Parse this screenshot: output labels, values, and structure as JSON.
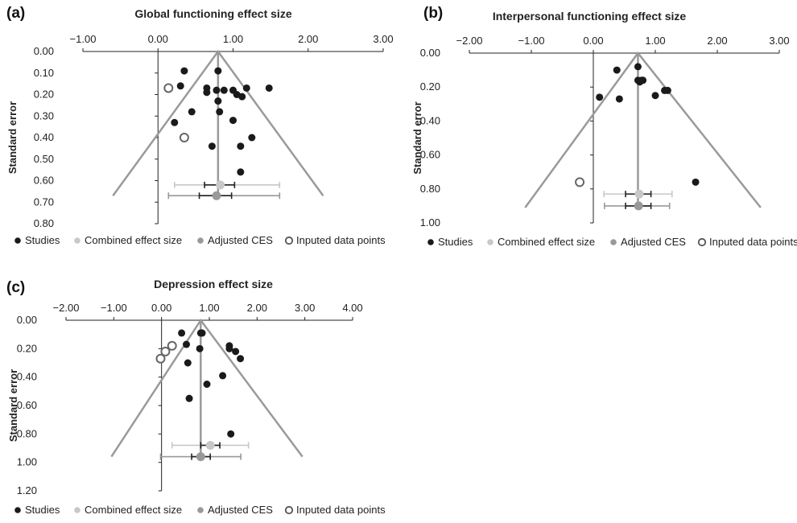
{
  "chart_data": [
    {
      "panel_label": "(a)",
      "type": "scatter",
      "title": "Global functioning effect size",
      "xlabel": "",
      "ylabel": "Standard error",
      "xlim": [
        -1.0,
        3.0
      ],
      "ylim": [
        0.0,
        0.8
      ],
      "x_ticks": [
        "−1.00",
        "0.00",
        "1.00",
        "2.00",
        "3.00"
      ],
      "y_ticks": [
        "0.00",
        "0.10",
        "0.20",
        "0.30",
        "0.40",
        "0.50",
        "0.60",
        "0.70",
        "0.80"
      ],
      "x_axis_position": "top",
      "y_axis_at_x": 0.0,
      "funnel": {
        "apex": [
          0.8,
          0.0
        ],
        "left_end": [
          -0.6,
          0.67
        ],
        "right_end": [
          2.2,
          0.67
        ]
      },
      "combined_es": {
        "x": 0.83,
        "se": 0.62,
        "ci": [
          0.22,
          1.62
        ],
        "inner_ci": [
          0.62,
          1.02
        ]
      },
      "adjusted_ces": {
        "x": 0.78,
        "se": 0.67,
        "ci": [
          0.14,
          1.62
        ],
        "inner_ci": [
          0.55,
          0.98
        ]
      },
      "studies": [
        {
          "x": 0.8,
          "y": 0.09
        },
        {
          "x": 0.35,
          "y": 0.09
        },
        {
          "x": 0.3,
          "y": 0.16
        },
        {
          "x": 0.65,
          "y": 0.17
        },
        {
          "x": 0.65,
          "y": 0.19
        },
        {
          "x": 0.78,
          "y": 0.18
        },
        {
          "x": 0.88,
          "y": 0.18
        },
        {
          "x": 1.0,
          "y": 0.18
        },
        {
          "x": 1.18,
          "y": 0.17
        },
        {
          "x": 1.48,
          "y": 0.17
        },
        {
          "x": 1.05,
          "y": 0.2
        },
        {
          "x": 1.12,
          "y": 0.21
        },
        {
          "x": 0.8,
          "y": 0.23
        },
        {
          "x": 0.82,
          "y": 0.28
        },
        {
          "x": 0.45,
          "y": 0.28
        },
        {
          "x": 0.22,
          "y": 0.33
        },
        {
          "x": 1.0,
          "y": 0.32
        },
        {
          "x": 1.25,
          "y": 0.4
        },
        {
          "x": 0.72,
          "y": 0.44
        },
        {
          "x": 1.1,
          "y": 0.44
        },
        {
          "x": 1.1,
          "y": 0.56
        }
      ],
      "imputed": [
        {
          "x": 0.14,
          "y": 0.17
        },
        {
          "x": 0.35,
          "y": 0.4
        }
      ],
      "legend": [
        "Studies",
        "Combined effect size",
        "Adjusted CES",
        "Inputed data points"
      ]
    },
    {
      "panel_label": "(b)",
      "type": "scatter",
      "title": "Interpersonal functioning effect size",
      "xlabel": "",
      "ylabel": "Standard error",
      "xlim": [
        -2.0,
        3.0
      ],
      "ylim": [
        0.0,
        1.0
      ],
      "x_ticks": [
        "−2.00",
        "−1.00",
        "0.00",
        "1.00",
        "2.00",
        "3.00"
      ],
      "y_ticks": [
        "0.00",
        "0.20",
        "0.40",
        "0.60",
        "0.80",
        "1.00"
      ],
      "x_axis_position": "top",
      "y_axis_at_x": 0.0,
      "funnel": {
        "apex": [
          0.72,
          0.0
        ],
        "left_end": [
          -1.1,
          0.91
        ],
        "right_end": [
          2.7,
          0.91
        ]
      },
      "combined_es": {
        "x": 0.74,
        "se": 0.83,
        "ci": [
          0.17,
          1.27
        ],
        "inner_ci": [
          0.52,
          0.93
        ]
      },
      "adjusted_ces": {
        "x": 0.73,
        "se": 0.9,
        "ci": [
          0.18,
          1.23
        ],
        "inner_ci": [
          0.52,
          0.93
        ]
      },
      "studies": [
        {
          "x": 0.72,
          "y": 0.08
        },
        {
          "x": 0.38,
          "y": 0.1
        },
        {
          "x": 0.72,
          "y": 0.16
        },
        {
          "x": 0.78,
          "y": 0.16
        },
        {
          "x": 0.8,
          "y": 0.16
        },
        {
          "x": 0.75,
          "y": 0.17
        },
        {
          "x": 1.15,
          "y": 0.22
        },
        {
          "x": 1.2,
          "y": 0.22
        },
        {
          "x": 1.0,
          "y": 0.25
        },
        {
          "x": 0.1,
          "y": 0.26
        },
        {
          "x": 0.42,
          "y": 0.27
        },
        {
          "x": 1.65,
          "y": 0.76
        }
      ],
      "imputed": [
        {
          "x": -0.22,
          "y": 0.76
        }
      ],
      "legend": [
        "Studies",
        "Combined effect size",
        "Adjusted CES",
        "Inputed data points"
      ]
    },
    {
      "panel_label": "(c)",
      "type": "scatter",
      "title": "Depression effect size",
      "xlabel": "",
      "ylabel": "Standard error",
      "xlim": [
        -2.0,
        4.0
      ],
      "ylim": [
        0.0,
        1.2
      ],
      "x_ticks": [
        "−2.00",
        "−1.00",
        "0.00",
        "1.00",
        "2.00",
        "3.00",
        "4.00"
      ],
      "y_ticks": [
        "0.00",
        "0.20",
        "0.40",
        "0.60",
        "0.80",
        "1.00",
        "1.20"
      ],
      "x_axis_position": "top",
      "y_axis_at_x": 0.0,
      "funnel": {
        "apex": [
          0.82,
          0.0
        ],
        "left_end": [
          -1.05,
          0.96
        ],
        "right_end": [
          2.95,
          0.96
        ]
      },
      "combined_es": {
        "x": 1.02,
        "se": 0.88,
        "ci": [
          0.22,
          1.82
        ],
        "inner_ci": [
          0.82,
          1.22
        ]
      },
      "adjusted_ces": {
        "x": 0.82,
        "se": 0.96,
        "ci": [
          -0.02,
          1.66
        ],
        "inner_ci": [
          0.63,
          1.02
        ]
      },
      "studies": [
        {
          "x": 0.82,
          "y": 0.09
        },
        {
          "x": 0.85,
          "y": 0.09
        },
        {
          "x": 0.42,
          "y": 0.09
        },
        {
          "x": 0.52,
          "y": 0.17
        },
        {
          "x": 1.42,
          "y": 0.18
        },
        {
          "x": 1.42,
          "y": 0.2
        },
        {
          "x": 1.55,
          "y": 0.22
        },
        {
          "x": 1.65,
          "y": 0.27
        },
        {
          "x": 0.8,
          "y": 0.2
        },
        {
          "x": 0.55,
          "y": 0.3
        },
        {
          "x": 1.28,
          "y": 0.39
        },
        {
          "x": 0.95,
          "y": 0.45
        },
        {
          "x": 0.58,
          "y": 0.55
        },
        {
          "x": 1.45,
          "y": 0.8
        }
      ],
      "imputed": [
        {
          "x": 0.22,
          "y": 0.18
        },
        {
          "x": 0.08,
          "y": 0.22
        },
        {
          "x": -0.02,
          "y": 0.27
        }
      ],
      "legend": [
        "Studies",
        "Combined effect size",
        "Adjusted CES",
        "Inputed data points"
      ]
    }
  ],
  "colors": {
    "studies": "#1a1a1a",
    "combined": "#c8c8c8",
    "adjusted": "#999999",
    "funnel": "#9a9a9a",
    "inner_ci": "#222222",
    "axis": "#222222"
  }
}
